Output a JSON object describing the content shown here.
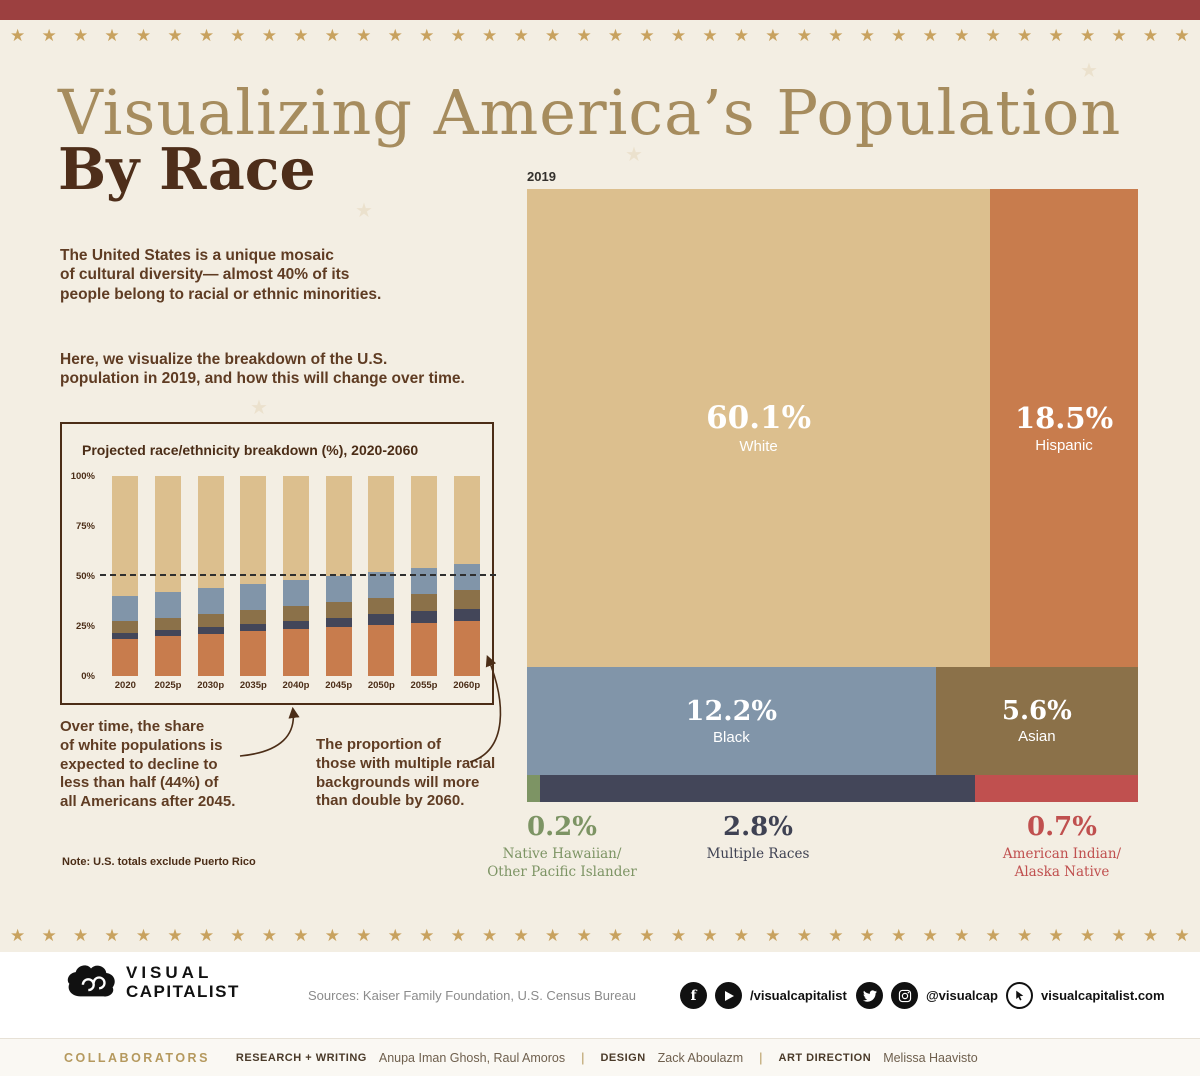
{
  "decoration": {
    "star_glyph": "★",
    "star_count": 38
  },
  "header": {
    "title_line1": "Visualizing America’s Population",
    "title_line2": "By Race",
    "intro_1": "The United States is a unique mosaic\nof cultural diversity— almost 40% of its\npeople belong to racial or ethnic minorities.",
    "intro_2": "Here, we visualize the breakdown of the U.S.\npopulation in 2019, and how this will change over time."
  },
  "annotations": {
    "left": "Over time, the share\nof white populations is\nexpected to decline to\nless than half (44%) of\nall Americans after 2045.",
    "right": "The proportion of\nthose with multiple racial\nbackgrounds will more\nthan double by 2060.",
    "note": "Note: U.S. totals exclude Puerto Rico"
  },
  "chart_data": [
    {
      "type": "treemap",
      "title": "2019",
      "items": [
        {
          "label": "White",
          "value": 60.1,
          "pct_label": "60.1%",
          "color": "#dcbf8e"
        },
        {
          "label": "Hispanic",
          "value": 18.5,
          "pct_label": "18.5%",
          "color": "#c87c4d"
        },
        {
          "label": "Black",
          "value": 12.2,
          "pct_label": "12.2%",
          "color": "#8195a9"
        },
        {
          "label": "Asian",
          "value": 5.6,
          "pct_label": "5.6%",
          "color": "#8b7149"
        },
        {
          "label": "Multiple Races",
          "value": 2.8,
          "pct_label": "2.8%",
          "color": "#434659",
          "display_name": "Multiple Races",
          "label_color": "#3f4253"
        },
        {
          "label": "American Indian/Alaska Native",
          "value": 0.7,
          "pct_label": "0.7%",
          "color": "#c0504f",
          "display_name": "American Indian/\nAlaska Native",
          "label_color": "#c0504f"
        },
        {
          "label": "Native Hawaiian/Other Pacific Islander",
          "value": 0.2,
          "pct_label": "0.2%",
          "color": "#7d9464",
          "display_name": "Native Hawaiian/\nOther Pacific Islander",
          "label_color": "#7d9464"
        }
      ]
    },
    {
      "type": "bar",
      "stacked": true,
      "title": "Projected race/ethnicity breakdown (%), 2020-2060",
      "categories": [
        "2020",
        "2025p",
        "2030p",
        "2035p",
        "2040p",
        "2045p",
        "2050p",
        "2055p",
        "2060p"
      ],
      "series": [
        {
          "name": "Hispanic",
          "color": "#c87c4d",
          "values": [
            18.7,
            19.9,
            21.1,
            22.3,
            23.5,
            24.6,
            25.7,
            26.7,
            27.5
          ]
        },
        {
          "name": "Multiple Races",
          "color": "#434659",
          "values": [
            2.8,
            3.1,
            3.4,
            3.8,
            4.2,
            4.6,
            5.1,
            5.7,
            6.2
          ]
        },
        {
          "name": "Asian",
          "color": "#8b7149",
          "values": [
            5.8,
            6.2,
            6.7,
            7.1,
            7.5,
            7.9,
            8.3,
            8.7,
            9.1
          ]
        },
        {
          "name": "Black",
          "color": "#8195a9",
          "values": [
            12.5,
            12.6,
            12.7,
            12.8,
            12.9,
            13.0,
            13.0,
            13.1,
            13.1
          ]
        },
        {
          "name": "White",
          "color": "#dcbf8e",
          "values": [
            60.2,
            58.2,
            56.1,
            54.0,
            51.9,
            49.9,
            47.9,
            45.8,
            44.1
          ]
        }
      ],
      "ylim": [
        0,
        100
      ],
      "yticks": [
        0,
        25,
        50,
        75,
        100
      ],
      "ytick_suffix": "%",
      "reference_line": 50,
      "legend": false
    }
  ],
  "footer": {
    "logo_line1": "VISUAL",
    "logo_line2": "CAPITALIST",
    "sources": "Sources: Kaiser Family Foundation, U.S. Census Bureau",
    "social_fb_yt_handle": "/visualcapitalist",
    "social_tw_ig_handle": "@visualcap",
    "website": "visualcapitalist.com"
  },
  "collaborators": {
    "label": "COLLABORATORS",
    "research_label": "RESEARCH + WRITING",
    "research_names": "Anupa Iman Ghosh, Raul Amoros",
    "separator": "|",
    "design_label": "DESIGN",
    "design_name": "Zack Aboulazm",
    "art_label": "ART DIRECTION",
    "art_name": "Melissa Haavisto"
  }
}
